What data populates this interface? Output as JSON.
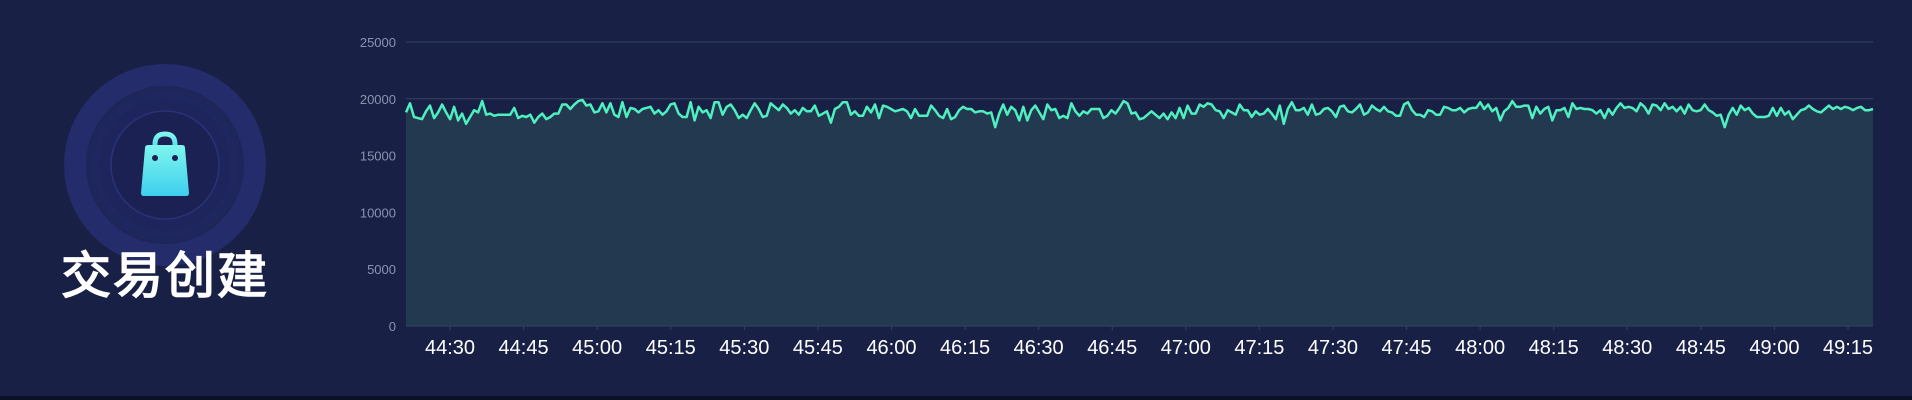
{
  "widget": {
    "title": "交易创建",
    "icon": "shopping-bag-icon"
  },
  "colors": {
    "background": "#192045",
    "line": "#4ef0c0",
    "area": "#22394f",
    "grid": "#34435f",
    "badge_ring": "#242c6b",
    "icon_gradient_top": "#7ff5ee",
    "icon_gradient_bottom": "#3ecfee"
  },
  "chart_data": {
    "type": "area",
    "title": "",
    "xlabel": "",
    "ylabel": "",
    "ylim": [
      0,
      25000
    ],
    "y_ticks": [
      "0",
      "5000",
      "10000",
      "15000",
      "20000",
      "25000"
    ],
    "x_ticks": [
      "44:30",
      "44:45",
      "45:00",
      "45:15",
      "45:30",
      "45:45",
      "46:00",
      "46:15",
      "46:30",
      "46:45",
      "47:00",
      "47:15",
      "47:30",
      "47:45",
      "48:00",
      "48:15",
      "48:30",
      "48:45",
      "49:00",
      "49:15"
    ],
    "grid": true,
    "legend": "none",
    "x_start": "44:25",
    "x_end": "49:25",
    "values": [
      18800,
      19600,
      18400,
      18300,
      18200,
      18900,
      19400,
      18300,
      18800,
      19500,
      18800,
      18200,
      19300,
      18100,
      18700,
      17800,
      18400,
      19000,
      18800,
      19800,
      18600,
      18700,
      18500,
      18600,
      18600,
      18600,
      18600,
      19200,
      18300,
      18500,
      18400,
      18600,
      17900,
      18400,
      18700,
      18200,
      18400,
      18700,
      18700,
      19500,
      19500,
      19100,
      19500,
      19800,
      19900,
      19400,
      19500,
      18800,
      18900,
      19600,
      18800,
      19600,
      18600,
      18400,
      19700,
      18400,
      19200,
      19100,
      18800,
      19100,
      19200,
      19300,
      18700,
      19000,
      18600,
      18900,
      19500,
      19600,
      18700,
      18400,
      18400,
      19700,
      18100,
      19300,
      18800,
      19000,
      18300,
      19700,
      19700,
      18600,
      19300,
      19500,
      19000,
      18300,
      18600,
      18300,
      19000,
      19600,
      19100,
      18400,
      18500,
      19600,
      19300,
      19000,
      19500,
      19200,
      18700,
      19000,
      18600,
      19200,
      18900,
      18900,
      19400,
      18500,
      18700,
      18900,
      17900,
      19100,
      19300,
      19700,
      19700,
      18600,
      18900,
      18500,
      18500,
      19300,
      18800,
      19500,
      18300,
      19400,
      19300,
      19100,
      18900,
      19000,
      19100,
      18900,
      18300,
      19100,
      18500,
      18500,
      18500,
      19400,
      19000,
      18500,
      18300,
      19100,
      18200,
      18400,
      19000,
      19300,
      19100,
      19100,
      18800,
      18900,
      18900,
      18700,
      18800,
      17500,
      18700,
      19500,
      18600,
      19300,
      19000,
      18100,
      19300,
      18100,
      19000,
      19400,
      18800,
      18200,
      19500,
      19000,
      19100,
      18300,
      18500,
      18300,
      19600,
      18900,
      18500,
      18900,
      18700,
      19100,
      19100,
      19100,
      18300,
      18500,
      19000,
      18700,
      19200,
      19800,
      19600,
      18700,
      18800,
      18200,
      18300,
      18600,
      18900,
      18600,
      18300,
      18700,
      18200,
      18800,
      18300,
      19200,
      18300,
      19400,
      18700,
      18700,
      19500,
      19300,
      19600,
      19500,
      19000,
      18900,
      18300,
      19000,
      18800,
      18600,
      19500,
      19000,
      19000,
      18400,
      18900,
      18600,
      18700,
      19100,
      18700,
      18200,
      19400,
      17800,
      19100,
      19700,
      19000,
      19000,
      19200,
      18600,
      19500,
      18600,
      18700,
      19100,
      19200,
      18900,
      18400,
      19300,
      19400,
      18900,
      18800,
      19100,
      19500,
      18600,
      18800,
      19400,
      19100,
      18900,
      19300,
      18900,
      18800,
      18500,
      18500,
      19500,
      19700,
      19000,
      18600,
      18600,
      18400,
      19000,
      18900,
      18600,
      18600,
      19300,
      19200,
      19000,
      19000,
      19200,
      18800,
      19100,
      19200,
      19200,
      19700,
      19100,
      19500,
      18900,
      19200,
      18100,
      18900,
      19200,
      19800,
      19300,
      19300,
      19400,
      19400,
      18300,
      19300,
      18700,
      19100,
      19300,
      18100,
      19000,
      19000,
      19200,
      18400,
      19600,
      19100,
      19200,
      19100,
      19100,
      19000,
      18700,
      19000,
      18300,
      19100,
      18600,
      19200,
      19600,
      19200,
      19300,
      19200,
      18900,
      19600,
      19300,
      18700,
      19500,
      19400,
      19000,
      19600,
      19100,
      19300,
      18900,
      19300,
      18700,
      19500,
      19000,
      18900,
      19000,
      19500,
      19000,
      18800,
      18500,
      18600,
      17500,
      18600,
      19200,
      18600,
      19400,
      19000,
      19200,
      18700,
      18400,
      18400,
      18400,
      18500,
      19200,
      18500,
      19200,
      18600,
      18900,
      18200,
      18600,
      19000,
      19100,
      19400,
      19100,
      18900,
      18800,
      19100,
      19400,
      19100,
      19300,
      19100,
      19300,
      19200,
      19000,
      19200,
      19300,
      19000,
      19000,
      19100
    ]
  }
}
